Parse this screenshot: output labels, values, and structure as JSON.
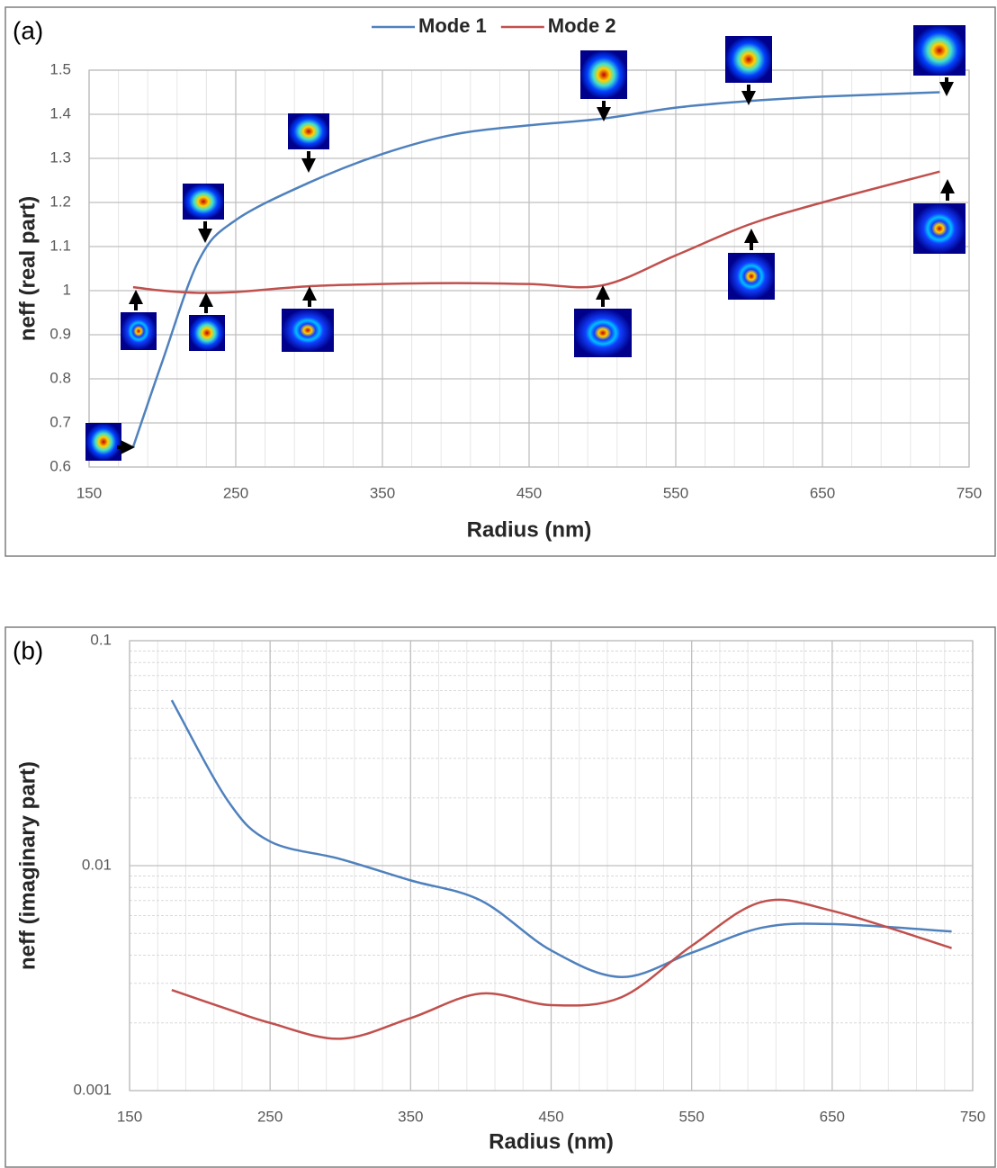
{
  "chart_data": [
    {
      "type": "line",
      "panel_label": "(a)",
      "x_label": "Radius (nm)",
      "y_label": "neff (real part)",
      "x": [
        180,
        200,
        225,
        250,
        300,
        350,
        400,
        450,
        500,
        550,
        600,
        650,
        730
      ],
      "series": [
        {
          "name": "Mode 1",
          "color": "#4f81bd",
          "values": [
            0.645,
            0.84,
            1.07,
            1.16,
            1.245,
            1.31,
            1.355,
            1.375,
            1.39,
            1.415,
            1.43,
            1.44,
            1.45
          ]
        },
        {
          "name": "Mode 2",
          "color": "#c0504d",
          "values": [
            1.008,
            1.0,
            0.995,
            0.997,
            1.01,
            1.015,
            1.017,
            1.015,
            1.012,
            1.08,
            1.15,
            1.2,
            1.27
          ]
        }
      ],
      "xlim": [
        150,
        750
      ],
      "xticks": [
        150,
        250,
        350,
        450,
        550,
        650,
        750
      ],
      "xminor_ticks": [
        170,
        190,
        210,
        230,
        270,
        290,
        310,
        330,
        370,
        390,
        410,
        430,
        470,
        490,
        510,
        530,
        570,
        590,
        610,
        630,
        670,
        690,
        710,
        730
      ],
      "ylim": [
        0.6,
        1.5
      ],
      "yticks": [
        0.6,
        0.7,
        0.8,
        0.9,
        1,
        1.1,
        1.2,
        1.3,
        1.4,
        1.5
      ],
      "grid": true,
      "legend": "top"
    },
    {
      "type": "line",
      "panel_label": "(b)",
      "x_label": "Radius (nm)",
      "y_label": "neff (imaginary part)",
      "x": [
        180,
        220,
        250,
        300,
        350,
        400,
        450,
        500,
        550,
        600,
        650,
        735
      ],
      "series": [
        {
          "color": "#4f81bd",
          "values": [
            0.0544,
            0.0194,
            0.0128,
            0.0107,
            0.0086,
            0.007,
            0.0042,
            0.0032,
            0.0041,
            0.0053,
            0.0055,
            0.0051
          ]
        },
        {
          "color": "#c0504d",
          "values": [
            0.0028,
            0.0023,
            0.002,
            0.0017,
            0.0021,
            0.0027,
            0.0024,
            0.0026,
            0.0044,
            0.0069,
            0.0063,
            0.0043
          ]
        }
      ],
      "xlim": [
        150,
        750
      ],
      "xticks": [
        150,
        250,
        350,
        450,
        550,
        650,
        750
      ],
      "xminor_ticks": [
        170,
        190,
        210,
        230,
        270,
        290,
        310,
        330,
        370,
        390,
        410,
        430,
        470,
        490,
        510,
        530,
        570,
        590,
        610,
        630,
        670,
        690,
        710,
        730
      ],
      "ylim": [
        0.001,
        0.1
      ],
      "yticks": [
        0.001,
        0.01,
        0.1
      ],
      "ylog": true,
      "yminor_ticks": [
        0.002,
        0.003,
        0.004,
        0.005,
        0.006,
        0.007,
        0.008,
        0.009,
        0.02,
        0.03,
        0.04,
        0.05,
        0.06,
        0.07,
        0.08,
        0.09
      ],
      "grid": true
    }
  ]
}
